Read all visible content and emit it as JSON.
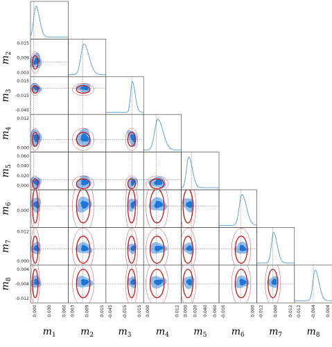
{
  "chart_data": {
    "type": "corner",
    "title": "",
    "parameters": [
      "m1",
      "m2",
      "m3",
      "m4",
      "m5",
      "m6",
      "m7",
      "m8"
    ],
    "axis_labels": [
      {
        "base": "m",
        "sub": "1"
      },
      {
        "base": "m",
        "sub": "2"
      },
      {
        "base": "m",
        "sub": "3"
      },
      {
        "base": "m",
        "sub": "4"
      },
      {
        "base": "m",
        "sub": "5"
      },
      {
        "base": "m",
        "sub": "6"
      },
      {
        "base": "m",
        "sub": "7"
      },
      {
        "base": "m",
        "sub": "8"
      }
    ],
    "ranges": [
      [
        -0.004,
        0.08
      ],
      [
        0.0,
        0.018
      ],
      [
        -0.06,
        0.02
      ],
      [
        -0.008,
        0.016
      ],
      [
        -0.012,
        0.07
      ],
      [
        -0.022,
        0.006
      ],
      [
        -0.012,
        0.016
      ],
      [
        -0.014,
        0.006
      ]
    ],
    "truth_values": [
      0.003,
      0.007,
      -0.005,
      0.0,
      0.01,
      -0.006,
      0.0,
      -0.004
    ],
    "x_ticks": [
      [
        "0.000",
        "0.030",
        "0.060"
      ],
      [
        "0.003",
        "0.009",
        "0.015"
      ],
      [
        "-0.045",
        "-0.015",
        "0.015"
      ],
      [
        "0.000",
        "0.012"
      ],
      [
        "0.000",
        "0.020",
        "0.040",
        "0.060"
      ],
      [
        "-0.016",
        "0.000"
      ],
      [
        "-0.012",
        "0.000",
        "0.012"
      ],
      [
        "-0.012",
        "-0.004",
        "0.004"
      ]
    ],
    "y_ticks": {
      "1": [
        "0.015",
        "0.009",
        "0.003"
      ],
      "2": [
        "0.015",
        "-0.015",
        "-0.045"
      ],
      "3": [
        "0.012",
        "0.000"
      ],
      "4": [
        "0.060",
        "0.040",
        "0.020",
        "0.000"
      ],
      "5": [
        "0.000"
      ],
      "6": [
        "0.012",
        "0.000"
      ],
      "7": [
        "0.004",
        "-0.004",
        "-0.012"
      ]
    },
    "marginal_means": [
      0.008,
      0.0075,
      -0.004,
      0.001,
      0.004,
      -0.005,
      0.0005,
      -0.003
    ],
    "marginal_sigmas": [
      0.006,
      0.0018,
      0.0045,
      0.0025,
      0.006,
      0.0025,
      0.002,
      0.0015
    ],
    "legend": [],
    "grid": false,
    "colors": {
      "contour_outer": "#8ec0ee",
      "contour_inner": "#1a77dd",
      "reference": "#cc1111",
      "marginal_line": "#3d8fd6",
      "truth_line": "#555555"
    }
  }
}
